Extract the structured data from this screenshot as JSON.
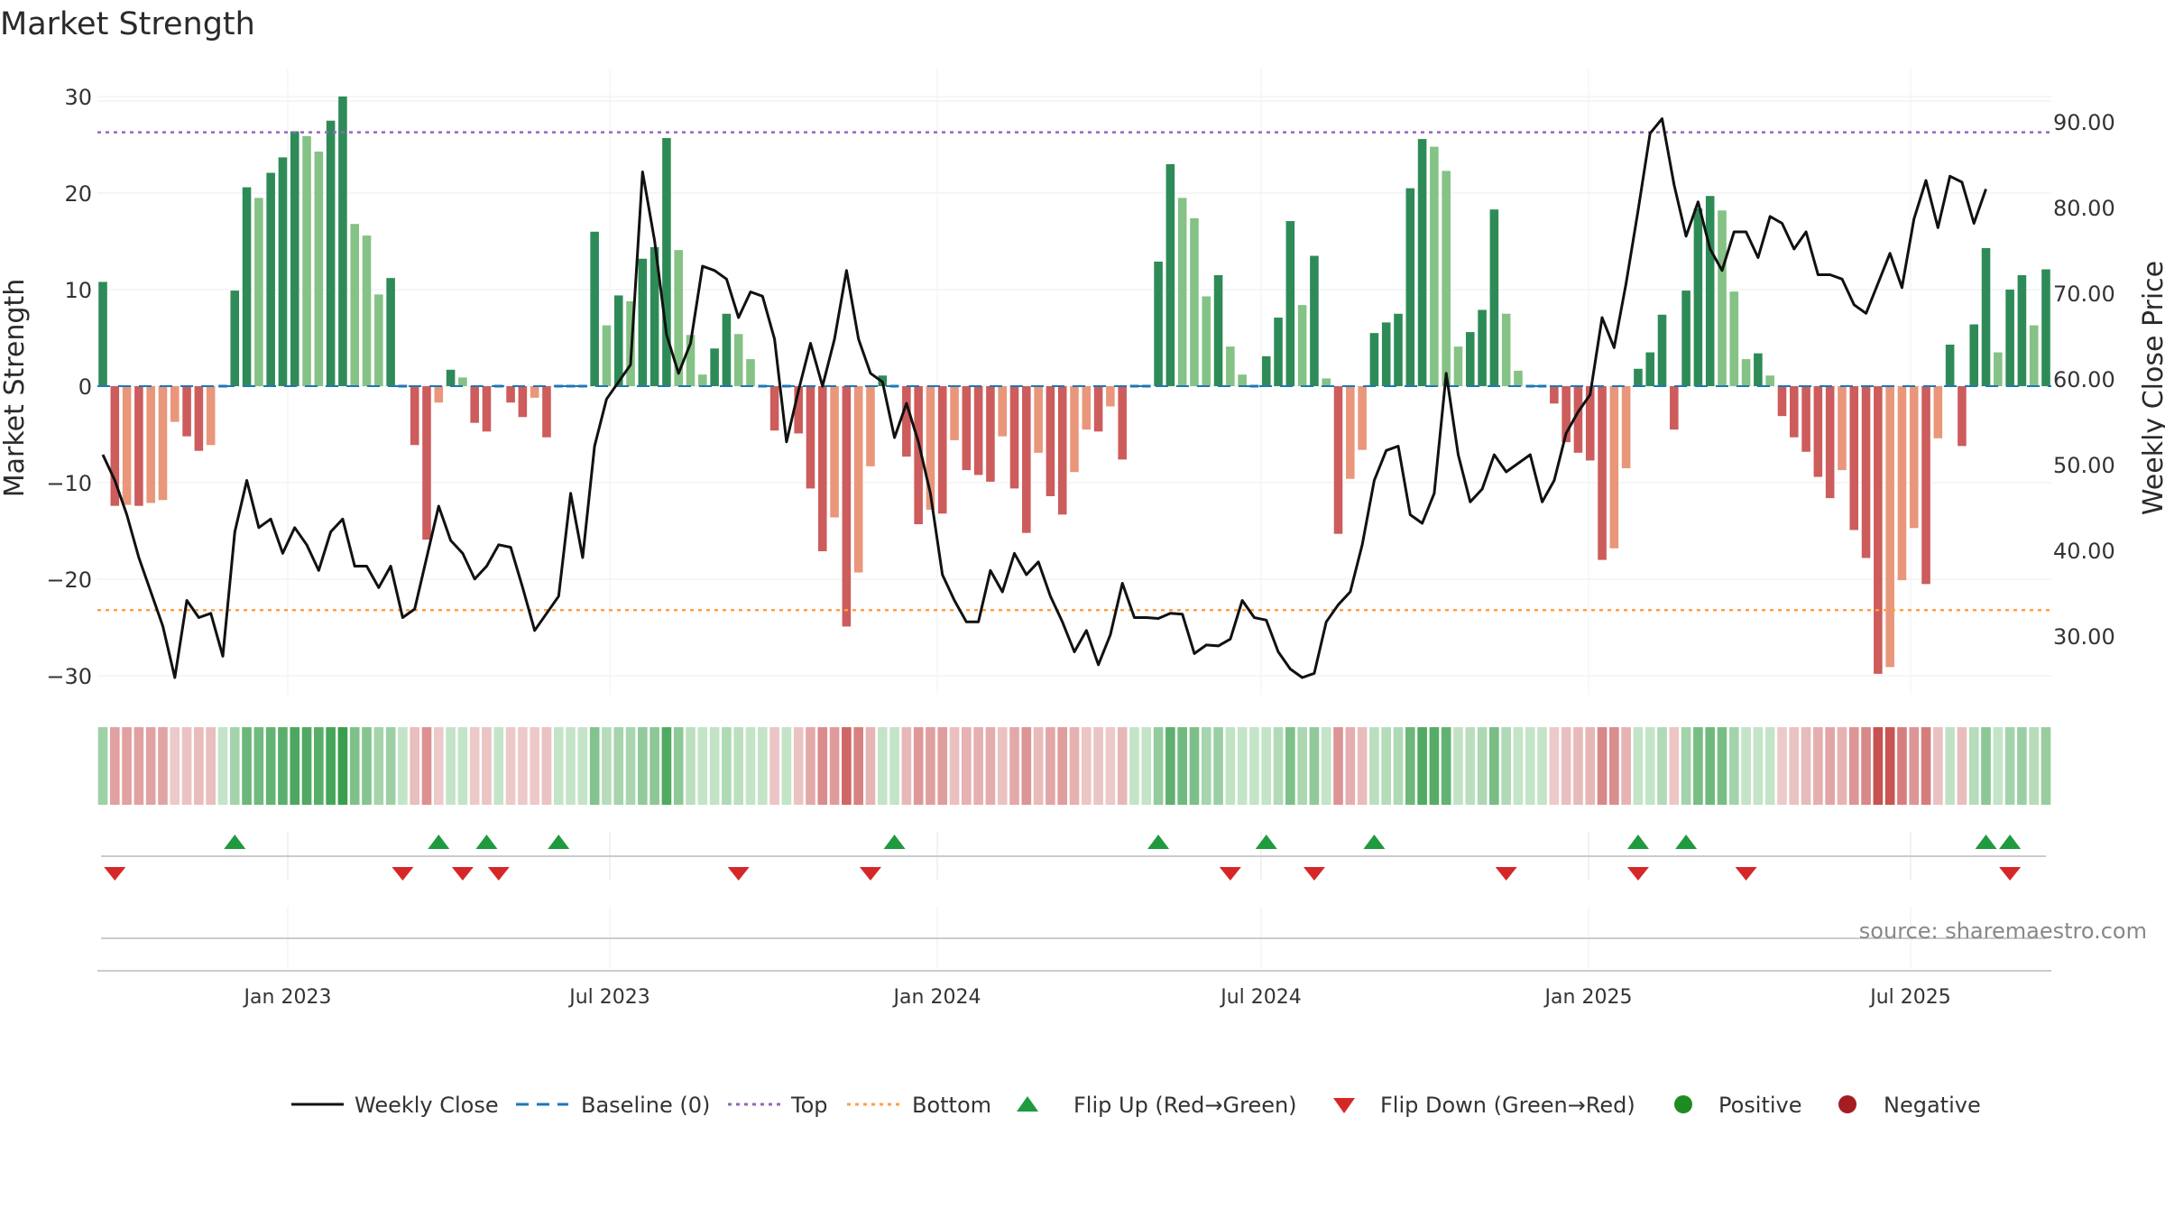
{
  "chart_data": {
    "type": "bar",
    "title": "Market Strength",
    "ylabel_left": "Market Strength",
    "ylabel_right": "Weekly Close Price",
    "left_ticks": [
      "30",
      "20",
      "10",
      "0",
      "−10",
      "−20",
      "−30"
    ],
    "right_ticks": [
      "90.00",
      "80.00",
      "70.00",
      "60.00",
      "50.00",
      "40.00",
      "30.00"
    ],
    "x_ticks": [
      "Jan 2023",
      "Jul 2023",
      "Jan 2024",
      "Jul 2024",
      "Jan 2025",
      "Jul 2025"
    ],
    "left_ylim": [
      -30,
      30
    ],
    "right_ylim": [
      30,
      90
    ],
    "reference_lines": {
      "top": 26.3,
      "bottom": -23.2,
      "baseline": 0
    },
    "strength": [
      10.8,
      -12.4,
      -12.3,
      -12.4,
      -12.1,
      -11.8,
      -3.7,
      -5.2,
      -6.7,
      -6.1,
      0,
      9.9,
      20.6,
      19.5,
      22.1,
      23.7,
      26.4,
      25.9,
      24.3,
      27.5,
      30,
      16.8,
      15.6,
      9.5,
      11.2,
      0,
      -6.1,
      -15.9,
      -1.7,
      1.7,
      0.9,
      -3.8,
      -4.7,
      0,
      -1.7,
      -3.2,
      -1.2,
      -5.3,
      0,
      0,
      0,
      16,
      6.3,
      9.4,
      8.8,
      13.2,
      14.4,
      25.7,
      14.1,
      5.3,
      1.2,
      3.9,
      7.5,
      5.4,
      2.8,
      0,
      -4.6,
      0,
      -4.9,
      -10.6,
      -17.1,
      -13.6,
      -24.9,
      -19.3,
      -8.3,
      1.1,
      0,
      -7.3,
      -14.3,
      -12.8,
      -13.2,
      -5.6,
      -8.7,
      -9.2,
      -9.9,
      -5.2,
      -10.6,
      -15.2,
      -6.9,
      -11.4,
      -13.3,
      -8.9,
      -4.5,
      -4.7,
      -2.1,
      -7.6,
      0,
      0,
      12.9,
      23,
      19.5,
      17.4,
      9.3,
      11.5,
      4.1,
      1.2,
      0,
      3.1,
      7.1,
      17.1,
      8.4,
      13.5,
      0.8,
      -15.3,
      -9.6,
      -6.6,
      5.5,
      6.6,
      7.5,
      20.5,
      25.6,
      24.8,
      22.3,
      4.1,
      5.6,
      7.9,
      18.3,
      7.5,
      1.6,
      0,
      0,
      -1.8,
      -5.8,
      -6.9,
      -7.7,
      -18,
      -16.8,
      -8.5,
      1.8,
      3.5,
      7.4,
      -4.5,
      9.9,
      18.4,
      19.7,
      18.2,
      9.8,
      2.8,
      3.4,
      1.1,
      -3.1,
      -5.3,
      -6.8,
      -9.4,
      -11.6,
      -8.7,
      -14.9,
      -17.8,
      -29.8,
      -29.1,
      -20.1,
      -14.7,
      -20.5,
      -5.4,
      4.3,
      -6.2,
      6.4,
      14.3,
      3.5,
      10,
      11.5,
      6.3,
      12.1
    ],
    "weekly_close": [
      52,
      49,
      45,
      40,
      36,
      32,
      26,
      35,
      33,
      33.5,
      28.5,
      43,
      49,
      43.5,
      44.5,
      40.5,
      43.5,
      41.5,
      38.5,
      43,
      44.5,
      39,
      39,
      36.5,
      39,
      33,
      34,
      40,
      46,
      42,
      40.5,
      37.5,
      39,
      41.5,
      41.2,
      36.5,
      31.5,
      33.5,
      35.5,
      47.5,
      40,
      53,
      58.5,
      60.5,
      62.5,
      85,
      77,
      66,
      61.5,
      65,
      74,
      73.5,
      72.5,
      68,
      71,
      70.5,
      65.5,
      53.5,
      59.5,
      65,
      60,
      65.5,
      73.5,
      65.5,
      61.5,
      60.5,
      54,
      58,
      53.5,
      47.5,
      38,
      35,
      32.5,
      32.5,
      38.5,
      36,
      40.5,
      38,
      39.5,
      35.5,
      32.5,
      29,
      31.5,
      27.5,
      31,
      37,
      33,
      33,
      32.9,
      33.5,
      33.4,
      28.8,
      29.8,
      29.7,
      30.5,
      35,
      33,
      32.7,
      29,
      27,
      26,
      26.5,
      32.5,
      34.5,
      36,
      41.5,
      49,
      52.5,
      53,
      45,
      44,
      47.5,
      61.5,
      52,
      46.5,
      48,
      52,
      50,
      51,
      52,
      46.5,
      49,
      54.5,
      57,
      59,
      68,
      64.5,
      72,
      80.5,
      89.5,
      91.2,
      83.5,
      77.5,
      81.5,
      76,
      73.5,
      78,
      78,
      75,
      79.8,
      79,
      76,
      78,
      73,
      73,
      72.5,
      69.5,
      68.5,
      72,
      75.5,
      71.5,
      79.5,
      84,
      78.5,
      84.5,
      83.8,
      79,
      83
    ],
    "flip_up_weeks": [
      11,
      28,
      32,
      38,
      66,
      88,
      97,
      106,
      128,
      132,
      157,
      159
    ],
    "flip_down_weeks": [
      1,
      25,
      30,
      33,
      53,
      64,
      94,
      101,
      117,
      128,
      137,
      159
    ],
    "legend": [
      "Weekly Close",
      "Baseline (0)",
      "Top",
      "Bottom",
      "Flip Up (Red→Green)",
      "Flip Down (Green→Red)",
      "Positive",
      "Negative"
    ],
    "colors": {
      "pos_strong": "#2e8b57",
      "pos_light": "#85c285",
      "neg_strong": "#cd5c5c",
      "neg_light": "#e9967a",
      "line": "#111111",
      "baseline": "#1f77b4",
      "top": "#9467bd",
      "bottom": "#ff9f40",
      "flip_up": "#1f9a3e",
      "flip_down": "#d62728",
      "positive": "#1e8c22",
      "negative": "#a51d21"
    }
  },
  "source": "source: sharemaestro.com"
}
